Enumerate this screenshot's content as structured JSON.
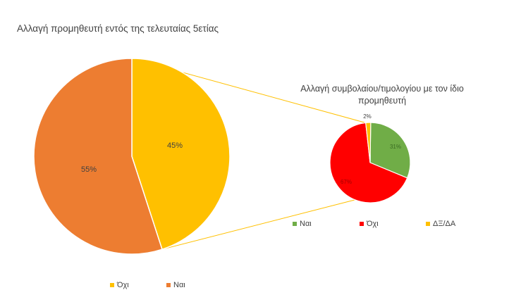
{
  "chart_data": [
    {
      "type": "pie",
      "title": "Αλλαγή προμηθευτή εντός της τελευταίας 5ετίας",
      "slices": [
        {
          "label": "Όχι",
          "value": 45,
          "value_label": "45%",
          "color": "#FFC000"
        },
        {
          "label": "Ναι",
          "value": 55,
          "value_label": "55%",
          "color": "#ED7D31"
        }
      ],
      "legend": [
        "Όχι",
        "Ναι"
      ],
      "legend_position": "bottom"
    },
    {
      "type": "pie",
      "title": "Αλλαγή συμβολαίου/τιμολογίου με τον ίδιο προμηθευτή",
      "slices": [
        {
          "label": "Ναι",
          "value": 31,
          "value_label": "31%",
          "color": "#70AD47"
        },
        {
          "label": "Όχι",
          "value": 67,
          "value_label": "67%",
          "color": "#FF0000"
        },
        {
          "label": "ΔΞ/ΔΑ",
          "value": 2,
          "value_label": "2%",
          "color": "#FFC000"
        }
      ],
      "legend": [
        "Ναι",
        "Όχι",
        "ΔΞ/ΔΑ"
      ],
      "legend_position": "bottom"
    }
  ]
}
